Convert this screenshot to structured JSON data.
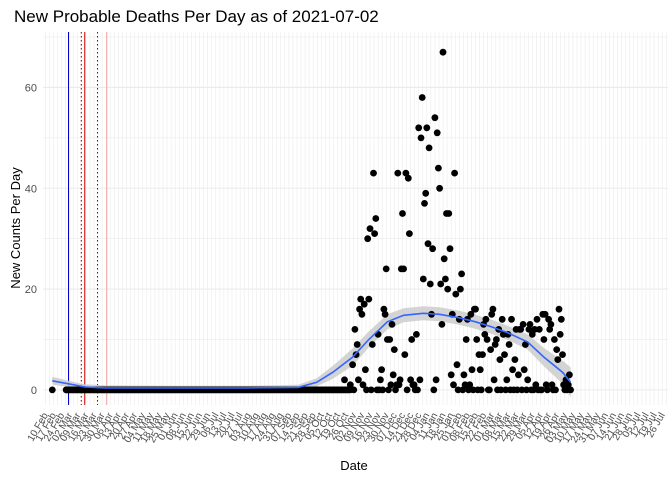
{
  "chart_data": {
    "type": "scatter",
    "title": "New Probable Deaths Per Day as of 2021-07-02",
    "xlabel": "Date",
    "ylabel": "New Counts Per Day",
    "xlim": [
      "2020-02-08",
      "2021-07-31"
    ],
    "ylim": [
      -3,
      71
    ],
    "y_ticks": [
      0,
      20,
      40,
      60
    ],
    "x_tick_start": "2020-02-10",
    "x_tick_step_days": 7,
    "x_ticks": [
      "10 Feb",
      "17 Feb",
      "24 Feb",
      "02 Mar",
      "09 Mar",
      "16 Mar",
      "23 Mar",
      "30 Mar",
      "06 Apr",
      "13 Apr",
      "20 Apr",
      "27 Apr",
      "04 May",
      "11 May",
      "18 May",
      "25 May",
      "01 Jun",
      "08 Jun",
      "15 Jun",
      "22 Jun",
      "29 Jun",
      "06 Jul",
      "13 Jul",
      "20 Jul",
      "27 Jul",
      "03 Aug",
      "10 Aug",
      "17 Aug",
      "24 Aug",
      "31 Aug",
      "07 Sep",
      "14 Sep",
      "21 Sep",
      "28 Sep",
      "05 Oct",
      "12 Oct",
      "19 Oct",
      "26 Oct",
      "02 Nov",
      "09 Nov",
      "16 Nov",
      "23 Nov",
      "30 Nov",
      "07 Dec",
      "14 Dec",
      "21 Dec",
      "28 Dec",
      "04 Jan",
      "11 Jan",
      "18 Jan",
      "25 Jan",
      "01 Feb",
      "08 Feb",
      "15 Feb",
      "22 Feb",
      "01 Mar",
      "08 Mar",
      "15 Mar",
      "22 Mar",
      "29 Mar",
      "05 Apr",
      "12 Apr",
      "19 Apr",
      "26 Apr",
      "03 May",
      "10 May",
      "17 May",
      "24 May",
      "31 May",
      "07 Jun",
      "14 Jun",
      "21 Jun",
      "28 Jun",
      "05 Jul",
      "12 Jul",
      "19 Jul",
      "26 Jul"
    ],
    "grid": true,
    "vertical_reference_lines": [
      {
        "date": "2020-03-01",
        "color": "#0000cc",
        "style": "solid"
      },
      {
        "date": "2020-03-12",
        "color": "#8b0000",
        "style": "dotted"
      },
      {
        "date": "2020-03-15",
        "color": "#cc0000",
        "style": "solid"
      },
      {
        "date": "2020-03-26",
        "color": "#8b0000",
        "style": "dotted"
      },
      {
        "date": "2020-04-03",
        "color": "#f4a0a0",
        "style": "solid"
      }
    ],
    "zero_runs": [
      {
        "start": "2020-02-28",
        "end": "2020-10-30"
      }
    ],
    "points": [
      [
        "2020-02-16",
        0
      ],
      [
        "2020-02-28",
        0
      ],
      [
        "2020-10-25",
        2
      ],
      [
        "2020-10-30",
        1
      ],
      [
        "2020-11-01",
        5
      ],
      [
        "2020-11-02",
        0
      ],
      [
        "2020-11-03",
        12
      ],
      [
        "2020-11-04",
        7
      ],
      [
        "2020-11-05",
        9
      ],
      [
        "2020-11-06",
        2
      ],
      [
        "2020-11-07",
        16
      ],
      [
        "2020-11-08",
        18
      ],
      [
        "2020-11-09",
        15
      ],
      [
        "2020-11-10",
        1
      ],
      [
        "2020-11-11",
        17
      ],
      [
        "2020-11-12",
        4
      ],
      [
        "2020-11-13",
        0
      ],
      [
        "2020-11-14",
        30
      ],
      [
        "2020-11-15",
        18
      ],
      [
        "2020-11-16",
        32
      ],
      [
        "2020-11-17",
        0
      ],
      [
        "2020-11-18",
        9
      ],
      [
        "2020-11-19",
        43
      ],
      [
        "2020-11-20",
        31
      ],
      [
        "2020-11-21",
        34
      ],
      [
        "2020-11-22",
        0
      ],
      [
        "2020-11-23",
        11
      ],
      [
        "2020-11-24",
        0
      ],
      [
        "2020-11-25",
        2
      ],
      [
        "2020-11-26",
        4
      ],
      [
        "2020-11-27",
        0
      ],
      [
        "2020-11-28",
        16
      ],
      [
        "2020-11-29",
        15
      ],
      [
        "2020-11-30",
        24
      ],
      [
        "2020-12-01",
        10
      ],
      [
        "2020-12-02",
        0
      ],
      [
        "2020-12-03",
        10
      ],
      [
        "2020-12-04",
        1
      ],
      [
        "2020-12-05",
        13
      ],
      [
        "2020-12-06",
        3
      ],
      [
        "2020-12-07",
        8
      ],
      [
        "2020-12-08",
        0
      ],
      [
        "2020-12-09",
        1
      ],
      [
        "2020-12-10",
        43
      ],
      [
        "2020-12-11",
        1
      ],
      [
        "2020-12-12",
        2
      ],
      [
        "2020-12-13",
        24
      ],
      [
        "2020-12-14",
        35
      ],
      [
        "2020-12-15",
        24
      ],
      [
        "2020-12-16",
        7
      ],
      [
        "2020-12-17",
        43
      ],
      [
        "2020-12-18",
        0
      ],
      [
        "2020-12-19",
        42
      ],
      [
        "2020-12-20",
        31
      ],
      [
        "2020-12-21",
        2
      ],
      [
        "2020-12-22",
        10
      ],
      [
        "2020-12-23",
        1
      ],
      [
        "2020-12-24",
        1
      ],
      [
        "2020-12-25",
        0
      ],
      [
        "2020-12-26",
        11
      ],
      [
        "2020-12-27",
        0
      ],
      [
        "2020-12-28",
        52
      ],
      [
        "2020-12-29",
        2
      ],
      [
        "2020-12-30",
        50
      ],
      [
        "2020-12-31",
        58
      ],
      [
        "2021-01-01",
        22
      ],
      [
        "2021-01-02",
        37
      ],
      [
        "2021-01-03",
        39
      ],
      [
        "2021-01-04",
        52
      ],
      [
        "2021-01-05",
        29
      ],
      [
        "2021-01-06",
        48
      ],
      [
        "2021-01-07",
        21
      ],
      [
        "2021-01-08",
        15
      ],
      [
        "2021-01-09",
        28
      ],
      [
        "2021-01-10",
        0
      ],
      [
        "2021-01-11",
        54
      ],
      [
        "2021-01-12",
        2
      ],
      [
        "2021-01-13",
        51
      ],
      [
        "2021-01-14",
        44
      ],
      [
        "2021-01-15",
        40
      ],
      [
        "2021-01-16",
        21
      ],
      [
        "2021-01-17",
        13
      ],
      [
        "2021-01-18",
        67
      ],
      [
        "2021-01-19",
        26
      ],
      [
        "2021-01-20",
        22
      ],
      [
        "2021-01-21",
        35
      ],
      [
        "2021-01-22",
        20
      ],
      [
        "2021-01-23",
        35
      ],
      [
        "2021-01-24",
        28
      ],
      [
        "2021-01-25",
        3
      ],
      [
        "2021-01-26",
        15
      ],
      [
        "2021-01-27",
        1
      ],
      [
        "2021-01-28",
        43
      ],
      [
        "2021-01-29",
        19
      ],
      [
        "2021-01-30",
        5
      ],
      [
        "2021-01-31",
        0
      ],
      [
        "2021-02-01",
        14
      ],
      [
        "2021-02-02",
        20
      ],
      [
        "2021-02-03",
        23
      ],
      [
        "2021-02-04",
        0
      ],
      [
        "2021-02-05",
        3
      ],
      [
        "2021-02-06",
        1
      ],
      [
        "2021-02-07",
        10
      ],
      [
        "2021-02-08",
        14
      ],
      [
        "2021-02-09",
        0
      ],
      [
        "2021-02-10",
        1
      ],
      [
        "2021-02-11",
        15
      ],
      [
        "2021-02-12",
        4
      ],
      [
        "2021-02-13",
        0
      ],
      [
        "2021-02-14",
        16
      ],
      [
        "2021-02-15",
        16
      ],
      [
        "2021-02-16",
        10
      ],
      [
        "2021-02-17",
        0
      ],
      [
        "2021-02-18",
        7
      ],
      [
        "2021-02-19",
        4
      ],
      [
        "2021-02-20",
        0
      ],
      [
        "2021-02-21",
        7
      ],
      [
        "2021-02-22",
        13
      ],
      [
        "2021-02-23",
        11
      ],
      [
        "2021-02-24",
        14
      ],
      [
        "2021-02-25",
        10
      ],
      [
        "2021-02-26",
        0
      ],
      [
        "2021-02-27",
        0
      ],
      [
        "2021-02-28",
        8
      ],
      [
        "2021-03-01",
        15
      ],
      [
        "2021-03-02",
        16
      ],
      [
        "2021-03-03",
        2
      ],
      [
        "2021-03-04",
        9
      ],
      [
        "2021-03-05",
        10
      ],
      [
        "2021-03-06",
        0
      ],
      [
        "2021-03-07",
        12
      ],
      [
        "2021-03-08",
        6
      ],
      [
        "2021-03-09",
        0
      ],
      [
        "2021-03-10",
        14
      ],
      [
        "2021-03-11",
        11
      ],
      [
        "2021-03-12",
        7
      ],
      [
        "2021-03-13",
        0
      ],
      [
        "2021-03-14",
        2
      ],
      [
        "2021-03-15",
        11
      ],
      [
        "2021-03-16",
        9
      ],
      [
        "2021-03-17",
        0
      ],
      [
        "2021-03-18",
        14
      ],
      [
        "2021-03-19",
        4
      ],
      [
        "2021-03-20",
        0
      ],
      [
        "2021-03-21",
        6
      ],
      [
        "2021-03-22",
        12
      ],
      [
        "2021-03-23",
        0
      ],
      [
        "2021-03-24",
        3
      ],
      [
        "2021-03-25",
        12
      ],
      [
        "2021-03-26",
        12
      ],
      [
        "2021-03-27",
        0
      ],
      [
        "2021-03-28",
        13
      ],
      [
        "2021-03-29",
        4
      ],
      [
        "2021-03-30",
        9
      ],
      [
        "2021-03-31",
        0
      ],
      [
        "2021-04-01",
        2
      ],
      [
        "2021-04-02",
        12
      ],
      [
        "2021-04-03",
        13
      ],
      [
        "2021-04-04",
        0
      ],
      [
        "2021-04-05",
        11
      ],
      [
        "2021-04-06",
        0
      ],
      [
        "2021-04-07",
        12
      ],
      [
        "2021-04-08",
        1
      ],
      [
        "2021-04-09",
        14
      ],
      [
        "2021-04-10",
        0
      ],
      [
        "2021-04-11",
        12
      ],
      [
        "2021-04-12",
        0
      ],
      [
        "2021-04-13",
        0
      ],
      [
        "2021-04-14",
        15
      ],
      [
        "2021-04-15",
        10
      ],
      [
        "2021-04-16",
        15
      ],
      [
        "2021-04-17",
        1
      ],
      [
        "2021-04-18",
        0
      ],
      [
        "2021-04-19",
        14
      ],
      [
        "2021-04-20",
        12
      ],
      [
        "2021-04-21",
        13
      ],
      [
        "2021-04-22",
        1
      ],
      [
        "2021-04-23",
        0
      ],
      [
        "2021-04-24",
        10
      ],
      [
        "2021-04-25",
        0
      ],
      [
        "2021-04-26",
        8
      ],
      [
        "2021-04-27",
        6
      ],
      [
        "2021-04-28",
        16
      ],
      [
        "2021-04-29",
        11
      ],
      [
        "2021-04-30",
        14
      ],
      [
        "2021-05-01",
        7
      ],
      [
        "2021-05-02",
        1
      ],
      [
        "2021-05-03",
        0
      ],
      [
        "2021-05-04",
        2
      ],
      [
        "2021-05-05",
        0
      ],
      [
        "2021-05-06",
        1
      ],
      [
        "2021-05-07",
        3
      ],
      [
        "2021-05-08",
        0
      ]
    ],
    "trend_line": [
      [
        "2020-02-16",
        1.8
      ],
      [
        "2020-03-01",
        1.2
      ],
      [
        "2020-03-15",
        0.6
      ],
      [
        "2020-04-01",
        0.4
      ],
      [
        "2020-06-01",
        0.4
      ],
      [
        "2020-08-01",
        0.4
      ],
      [
        "2020-09-15",
        0.5
      ],
      [
        "2020-10-01",
        1.5
      ],
      [
        "2020-10-15",
        3.5
      ],
      [
        "2020-11-01",
        6.5
      ],
      [
        "2020-11-15",
        10
      ],
      [
        "2020-12-01",
        13.5
      ],
      [
        "2020-12-15",
        14.8
      ],
      [
        "2021-01-01",
        15.2
      ],
      [
        "2021-01-15",
        15.0
      ],
      [
        "2021-02-01",
        14.3
      ],
      [
        "2021-02-15",
        13.5
      ],
      [
        "2021-03-01",
        12.5
      ],
      [
        "2021-03-15",
        11.3
      ],
      [
        "2021-04-01",
        9.5
      ],
      [
        "2021-04-15",
        6.5
      ],
      [
        "2021-05-01",
        3.5
      ],
      [
        "2021-05-08",
        1.5
      ]
    ],
    "trend_band": [
      [
        "2020-02-16",
        2.6,
        1.0
      ],
      [
        "2020-03-01",
        1.8,
        0.6
      ],
      [
        "2020-03-15",
        1.1,
        0.1
      ],
      [
        "2020-04-01",
        0.9,
        -0.1
      ],
      [
        "2020-06-01",
        0.8,
        0.0
      ],
      [
        "2020-08-01",
        0.8,
        0.0
      ],
      [
        "2020-09-15",
        1.0,
        0.0
      ],
      [
        "2020-10-01",
        2.3,
        0.7
      ],
      [
        "2020-10-15",
        4.8,
        2.2
      ],
      [
        "2020-11-01",
        8.2,
        4.8
      ],
      [
        "2020-11-15",
        11.6,
        8.4
      ],
      [
        "2020-12-01",
        15.0,
        12.0
      ],
      [
        "2020-12-15",
        16.2,
        13.4
      ],
      [
        "2021-01-01",
        16.6,
        13.8
      ],
      [
        "2021-01-15",
        16.4,
        13.6
      ],
      [
        "2021-02-01",
        15.7,
        12.9
      ],
      [
        "2021-02-15",
        14.9,
        12.1
      ],
      [
        "2021-03-01",
        13.9,
        11.1
      ],
      [
        "2021-03-15",
        12.7,
        9.9
      ],
      [
        "2021-04-01",
        11.0,
        8.0
      ],
      [
        "2021-04-15",
        8.3,
        4.7
      ],
      [
        "2021-05-01",
        5.8,
        1.2
      ],
      [
        "2021-05-08",
        4.5,
        -1.5
      ]
    ],
    "colors": {
      "points": "#000000",
      "trend_line": "#3366ff",
      "trend_band": "#cccccc",
      "grid": "#ebebeb",
      "axis_text": "#4d4d4d"
    }
  }
}
